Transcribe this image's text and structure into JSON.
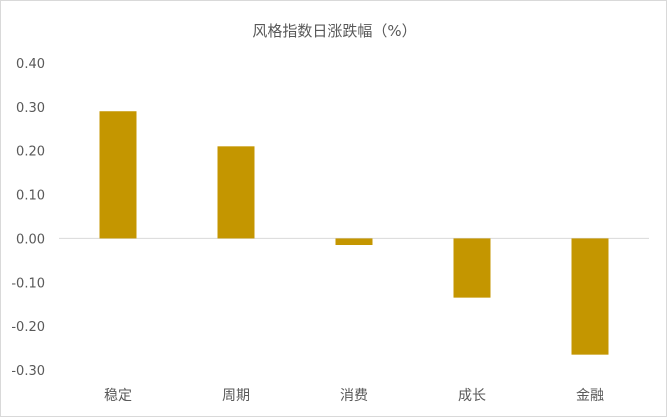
{
  "chart_data": {
    "type": "bar",
    "title": "风格指数日涨跌幅（%）",
    "categories": [
      "稳定",
      "周期",
      "消费",
      "成长",
      "金融"
    ],
    "values": [
      0.29,
      0.21,
      -0.015,
      -0.135,
      -0.265
    ],
    "ylim": [
      -0.3,
      0.4
    ],
    "yticks": [
      "0.40",
      "0.30",
      "0.20",
      "0.10",
      "0.00",
      "-0.10",
      "-0.20",
      "-0.30"
    ],
    "xlabel": "",
    "ylabel": "",
    "grid": false,
    "legend": "none",
    "bar_color": "#C49600",
    "axis_color": "#d9d9d9"
  }
}
